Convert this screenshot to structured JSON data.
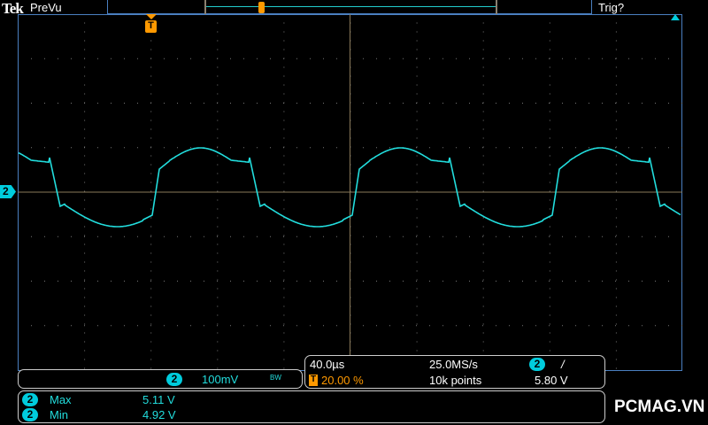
{
  "header": {
    "brand": "Tek",
    "mode": "PreVu",
    "trigger_status": "Trig?"
  },
  "colors": {
    "trace": "#2dd",
    "trigger": "#f90",
    "frame": "#4a7fc0"
  },
  "icons": {
    "trigger_marker": "T-marker",
    "ch2_marker": "2",
    "trigger_level": "arrow-up"
  },
  "plot": {
    "ground_marker": "2",
    "trigger_marker": "T"
  },
  "channel": {
    "number": "2",
    "scale": "100mV",
    "bw": "BW"
  },
  "timebase": {
    "scale": "40.0µs",
    "sample_rate": "25.0MS/s",
    "trigger_channel": "2",
    "trigger_slope": "/",
    "trigger_icon": "T",
    "position": "20.00 %",
    "record_length": "10k points",
    "trigger_level": "5.80 V"
  },
  "measurements": [
    {
      "channel": "2",
      "label": "Max",
      "value": "5.11 V"
    },
    {
      "channel": "2",
      "label": "Min",
      "value": "4.92 V"
    }
  ],
  "watermark": "PCMAG.VN"
}
